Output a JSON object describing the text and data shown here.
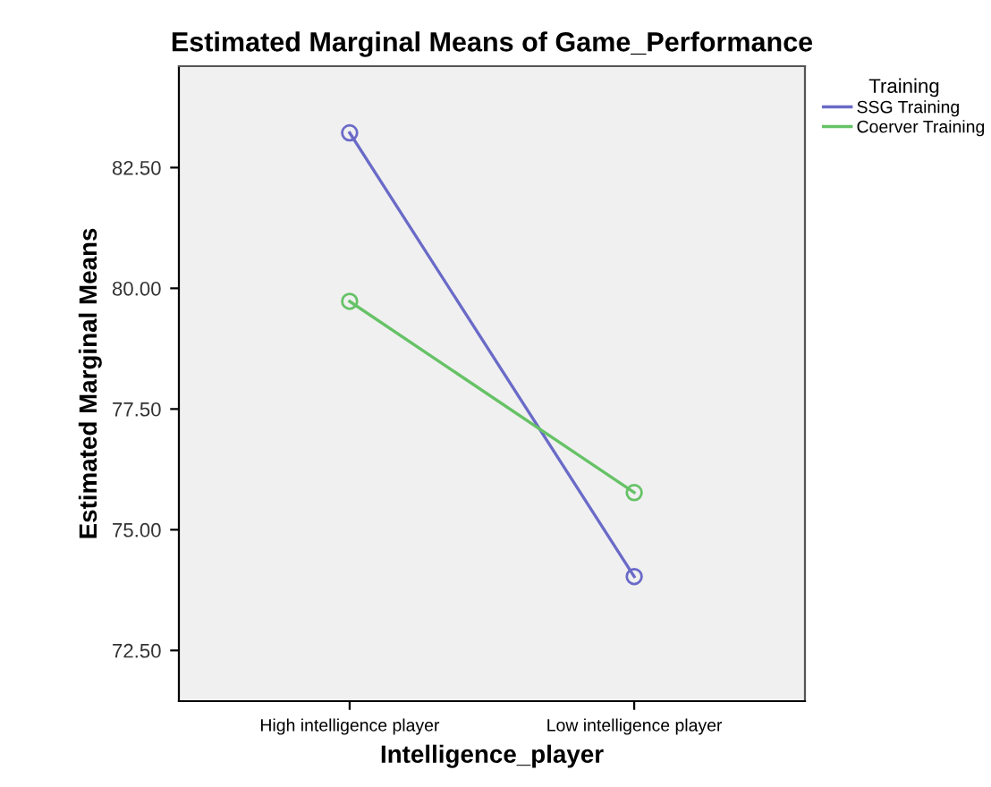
{
  "chart_data": {
    "type": "line",
    "title": "Estimated Marginal Means of Game_Performance",
    "xlabel": "Intelligence_player",
    "ylabel": "Estimated Marginal Means",
    "legend_title": "Training",
    "categories": [
      "High intelligence player",
      "Low intelligence player"
    ],
    "series": [
      {
        "name": "SSG Training",
        "color": "#6a6ac8",
        "values": [
          83.22,
          74.03
        ]
      },
      {
        "name": "Coerver Training",
        "color": "#66c266",
        "values": [
          79.73,
          75.77
        ]
      }
    ],
    "ylim": [
      71.45,
      84.6
    ],
    "yticks": [
      {
        "value": 72.5,
        "label": "72.50"
      },
      {
        "value": 75,
        "label": "75.00"
      },
      {
        "value": 77.5,
        "label": "77.50"
      },
      {
        "value": 80,
        "label": "80.00"
      },
      {
        "value": 82.5,
        "label": "82.50"
      }
    ],
    "marker": "circle",
    "line_style": "solid",
    "grid": false,
    "legend": "top right"
  }
}
